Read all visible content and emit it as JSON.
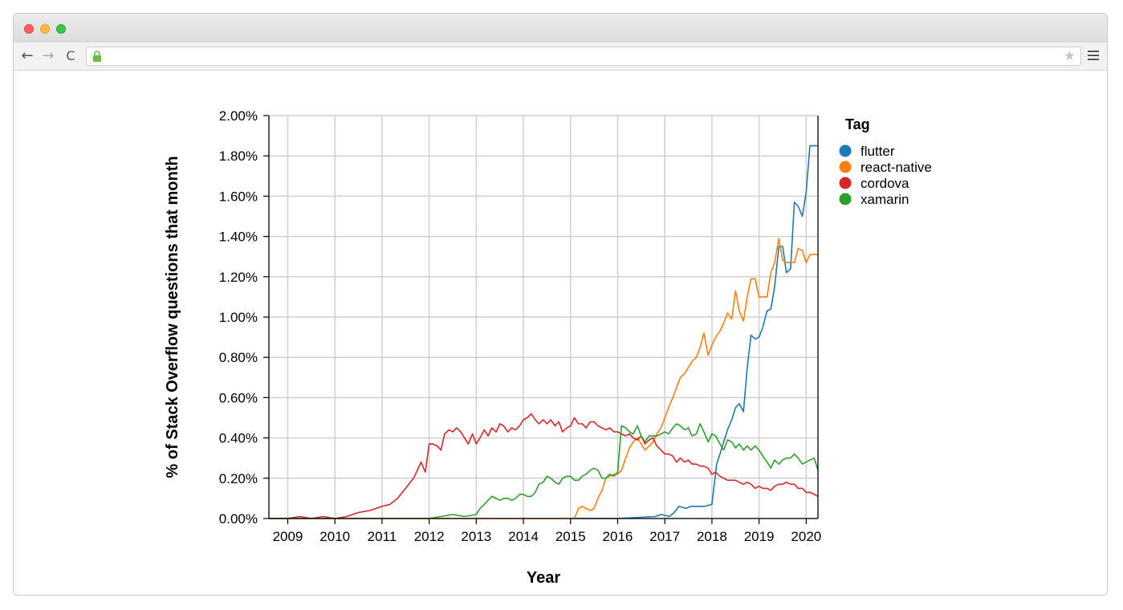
{
  "browser": {
    "buttons": {
      "back": "←",
      "forward": "→",
      "reload": "C"
    },
    "icons": {
      "lock": "lock-icon",
      "star": "star-icon",
      "menu": "menu-icon"
    },
    "colors": {
      "lock": "#6abf3e"
    }
  },
  "chart_data": {
    "type": "line",
    "title": "",
    "xlabel": "Year",
    "ylabel": "% of Stack Overflow questions that month",
    "xlim": [
      2008.6,
      2020.25
    ],
    "ylim": [
      0,
      2.0
    ],
    "x_ticks": [
      2009,
      2010,
      2011,
      2012,
      2013,
      2014,
      2015,
      2016,
      2017,
      2018,
      2019,
      2020
    ],
    "x_tick_labels": [
      "2009",
      "2010",
      "2011",
      "2012",
      "2013",
      "2014",
      "2015",
      "2016",
      "2017",
      "2018",
      "2019",
      "2020"
    ],
    "y_ticks": [
      0,
      0.2,
      0.4,
      0.6,
      0.8,
      1.0,
      1.2,
      1.4,
      1.6,
      1.8,
      2.0
    ],
    "y_tick_labels": [
      "0.00%",
      "0.20%",
      "0.40%",
      "0.60%",
      "0.80%",
      "1.00%",
      "1.20%",
      "1.40%",
      "1.60%",
      "1.80%",
      "2.00%"
    ],
    "grid": true,
    "legend": {
      "title": "Tag",
      "placement": "right"
    },
    "series": [
      {
        "name": "flutter",
        "color": "#1f77b4",
        "x": [
          2015.0,
          2016.0,
          2016.8,
          2016.92,
          2017.1,
          2017.2,
          2017.3,
          2017.45,
          2017.55,
          2017.7,
          2017.85,
          2018.0,
          2018.1,
          2018.17,
          2018.25,
          2018.33,
          2018.42,
          2018.5,
          2018.58,
          2018.67,
          2018.75,
          2018.83,
          2018.92,
          2019.0,
          2019.08,
          2019.17,
          2019.25,
          2019.33,
          2019.42,
          2019.5,
          2019.58,
          2019.67,
          2019.75,
          2019.83,
          2019.92,
          2020.0,
          2020.08,
          2020.17,
          2020.25
        ],
        "values": [
          0.0,
          0.0,
          0.01,
          0.02,
          0.01,
          0.03,
          0.06,
          0.05,
          0.06,
          0.06,
          0.06,
          0.07,
          0.27,
          0.32,
          0.38,
          0.44,
          0.49,
          0.55,
          0.57,
          0.53,
          0.75,
          0.91,
          0.89,
          0.9,
          0.95,
          1.03,
          1.04,
          1.15,
          1.35,
          1.35,
          1.22,
          1.24,
          1.57,
          1.55,
          1.5,
          1.62,
          1.85,
          1.85,
          1.85
        ]
      },
      {
        "name": "react-native",
        "color": "#ff7f0e",
        "x": [
          2008.6,
          2015.0,
          2015.08,
          2015.17,
          2015.25,
          2015.33,
          2015.42,
          2015.5,
          2015.58,
          2015.67,
          2015.75,
          2015.83,
          2015.92,
          2016.0,
          2016.08,
          2016.17,
          2016.25,
          2016.33,
          2016.42,
          2016.5,
          2016.58,
          2016.67,
          2016.75,
          2016.83,
          2016.92,
          2017.0,
          2017.08,
          2017.17,
          2017.25,
          2017.33,
          2017.42,
          2017.5,
          2017.58,
          2017.67,
          2017.75,
          2017.83,
          2017.92,
          2018.0,
          2018.08,
          2018.17,
          2018.25,
          2018.33,
          2018.42,
          2018.5,
          2018.58,
          2018.67,
          2018.75,
          2018.83,
          2018.92,
          2019.0,
          2019.08,
          2019.17,
          2019.25,
          2019.33,
          2019.42,
          2019.5,
          2019.58,
          2019.67,
          2019.75,
          2019.83,
          2019.92,
          2020.0,
          2020.08,
          2020.17,
          2020.25
        ],
        "values": [
          0.0,
          0.0,
          0.0,
          0.05,
          0.06,
          0.05,
          0.04,
          0.05,
          0.1,
          0.14,
          0.2,
          0.21,
          0.22,
          0.22,
          0.24,
          0.3,
          0.35,
          0.38,
          0.4,
          0.37,
          0.34,
          0.36,
          0.38,
          0.42,
          0.45,
          0.5,
          0.55,
          0.6,
          0.65,
          0.7,
          0.72,
          0.75,
          0.78,
          0.8,
          0.85,
          0.92,
          0.81,
          0.86,
          0.9,
          0.93,
          0.97,
          1.02,
          0.99,
          1.13,
          1.03,
          0.98,
          1.1,
          1.19,
          1.19,
          1.1,
          1.1,
          1.1,
          1.22,
          1.27,
          1.39,
          1.28,
          1.27,
          1.27,
          1.27,
          1.34,
          1.33,
          1.27,
          1.31,
          1.31,
          1.31
        ]
      },
      {
        "name": "cordova",
        "color": "#d62728",
        "x": [
          2008.6,
          2009.0,
          2009.25,
          2009.5,
          2009.75,
          2010.0,
          2010.25,
          2010.5,
          2010.75,
          2011.0,
          2011.17,
          2011.33,
          2011.5,
          2011.67,
          2011.75,
          2011.83,
          2011.92,
          2012.0,
          2012.08,
          2012.17,
          2012.25,
          2012.33,
          2012.42,
          2012.5,
          2012.58,
          2012.67,
          2012.75,
          2012.83,
          2012.92,
          2013.0,
          2013.08,
          2013.17,
          2013.25,
          2013.33,
          2013.42,
          2013.5,
          2013.58,
          2013.67,
          2013.75,
          2013.83,
          2013.92,
          2014.0,
          2014.08,
          2014.17,
          2014.25,
          2014.33,
          2014.42,
          2014.5,
          2014.58,
          2014.67,
          2014.75,
          2014.83,
          2014.92,
          2015.0,
          2015.08,
          2015.17,
          2015.25,
          2015.33,
          2015.42,
          2015.5,
          2015.58,
          2015.67,
          2015.75,
          2015.83,
          2015.92,
          2016.0,
          2016.08,
          2016.17,
          2016.25,
          2016.33,
          2016.42,
          2016.5,
          2016.58,
          2016.67,
          2016.75,
          2016.83,
          2016.92,
          2017.0,
          2017.08,
          2017.17,
          2017.25,
          2017.33,
          2017.42,
          2017.5,
          2017.58,
          2017.67,
          2017.75,
          2017.83,
          2017.92,
          2018.0,
          2018.08,
          2018.17,
          2018.25,
          2018.33,
          2018.42,
          2018.5,
          2018.58,
          2018.67,
          2018.75,
          2018.83,
          2018.92,
          2019.0,
          2019.08,
          2019.17,
          2019.25,
          2019.33,
          2019.42,
          2019.5,
          2019.58,
          2019.67,
          2019.75,
          2019.83,
          2019.92,
          2020.0,
          2020.08,
          2020.17,
          2020.25
        ],
        "values": [
          0.0,
          0.0,
          0.01,
          0.0,
          0.01,
          0.0,
          0.01,
          0.03,
          0.04,
          0.06,
          0.07,
          0.1,
          0.15,
          0.2,
          0.24,
          0.28,
          0.23,
          0.37,
          0.37,
          0.36,
          0.34,
          0.42,
          0.44,
          0.43,
          0.45,
          0.43,
          0.4,
          0.37,
          0.42,
          0.37,
          0.4,
          0.44,
          0.41,
          0.45,
          0.43,
          0.47,
          0.46,
          0.43,
          0.45,
          0.44,
          0.46,
          0.49,
          0.5,
          0.52,
          0.49,
          0.47,
          0.49,
          0.47,
          0.49,
          0.46,
          0.48,
          0.43,
          0.45,
          0.46,
          0.5,
          0.47,
          0.47,
          0.45,
          0.48,
          0.48,
          0.46,
          0.45,
          0.44,
          0.45,
          0.43,
          0.43,
          0.42,
          0.41,
          0.42,
          0.4,
          0.39,
          0.41,
          0.37,
          0.39,
          0.4,
          0.36,
          0.34,
          0.32,
          0.32,
          0.31,
          0.28,
          0.3,
          0.28,
          0.29,
          0.27,
          0.27,
          0.26,
          0.26,
          0.25,
          0.22,
          0.23,
          0.21,
          0.2,
          0.19,
          0.19,
          0.19,
          0.18,
          0.17,
          0.18,
          0.17,
          0.15,
          0.16,
          0.15,
          0.15,
          0.14,
          0.16,
          0.17,
          0.17,
          0.18,
          0.17,
          0.17,
          0.15,
          0.15,
          0.13,
          0.13,
          0.12,
          0.11
        ]
      },
      {
        "name": "xamarin",
        "color": "#2ca02c",
        "x": [
          2008.6,
          2012.0,
          2012.25,
          2012.5,
          2012.75,
          2013.0,
          2013.08,
          2013.17,
          2013.25,
          2013.33,
          2013.42,
          2013.5,
          2013.58,
          2013.67,
          2013.75,
          2013.83,
          2013.92,
          2014.0,
          2014.08,
          2014.17,
          2014.25,
          2014.33,
          2014.42,
          2014.5,
          2014.58,
          2014.67,
          2014.75,
          2014.83,
          2014.92,
          2015.0,
          2015.08,
          2015.17,
          2015.25,
          2015.33,
          2015.42,
          2015.5,
          2015.58,
          2015.67,
          2015.75,
          2015.83,
          2015.92,
          2016.0,
          2016.08,
          2016.17,
          2016.25,
          2016.33,
          2016.42,
          2016.5,
          2016.58,
          2016.67,
          2016.75,
          2016.83,
          2016.92,
          2017.0,
          2017.08,
          2017.17,
          2017.25,
          2017.33,
          2017.42,
          2017.5,
          2017.58,
          2017.67,
          2017.75,
          2017.83,
          2017.92,
          2018.0,
          2018.08,
          2018.17,
          2018.25,
          2018.33,
          2018.42,
          2018.5,
          2018.58,
          2018.67,
          2018.75,
          2018.83,
          2018.92,
          2019.0,
          2019.08,
          2019.17,
          2019.25,
          2019.33,
          2019.42,
          2019.5,
          2019.58,
          2019.67,
          2019.75,
          2019.83,
          2019.92,
          2020.0,
          2020.08,
          2020.17,
          2020.25
        ],
        "values": [
          0.0,
          0.0,
          0.01,
          0.02,
          0.01,
          0.02,
          0.05,
          0.07,
          0.09,
          0.11,
          0.1,
          0.09,
          0.1,
          0.1,
          0.09,
          0.1,
          0.12,
          0.12,
          0.11,
          0.11,
          0.13,
          0.17,
          0.18,
          0.21,
          0.2,
          0.18,
          0.17,
          0.2,
          0.21,
          0.21,
          0.19,
          0.19,
          0.21,
          0.22,
          0.24,
          0.25,
          0.24,
          0.2,
          0.2,
          0.22,
          0.21,
          0.23,
          0.46,
          0.45,
          0.43,
          0.42,
          0.46,
          0.41,
          0.38,
          0.41,
          0.41,
          0.41,
          0.42,
          0.43,
          0.42,
          0.45,
          0.47,
          0.46,
          0.44,
          0.45,
          0.41,
          0.42,
          0.47,
          0.43,
          0.38,
          0.42,
          0.41,
          0.37,
          0.34,
          0.39,
          0.38,
          0.35,
          0.37,
          0.34,
          0.36,
          0.34,
          0.36,
          0.34,
          0.31,
          0.28,
          0.25,
          0.29,
          0.27,
          0.29,
          0.3,
          0.3,
          0.32,
          0.3,
          0.27,
          0.28,
          0.29,
          0.3,
          0.24
        ]
      }
    ]
  }
}
